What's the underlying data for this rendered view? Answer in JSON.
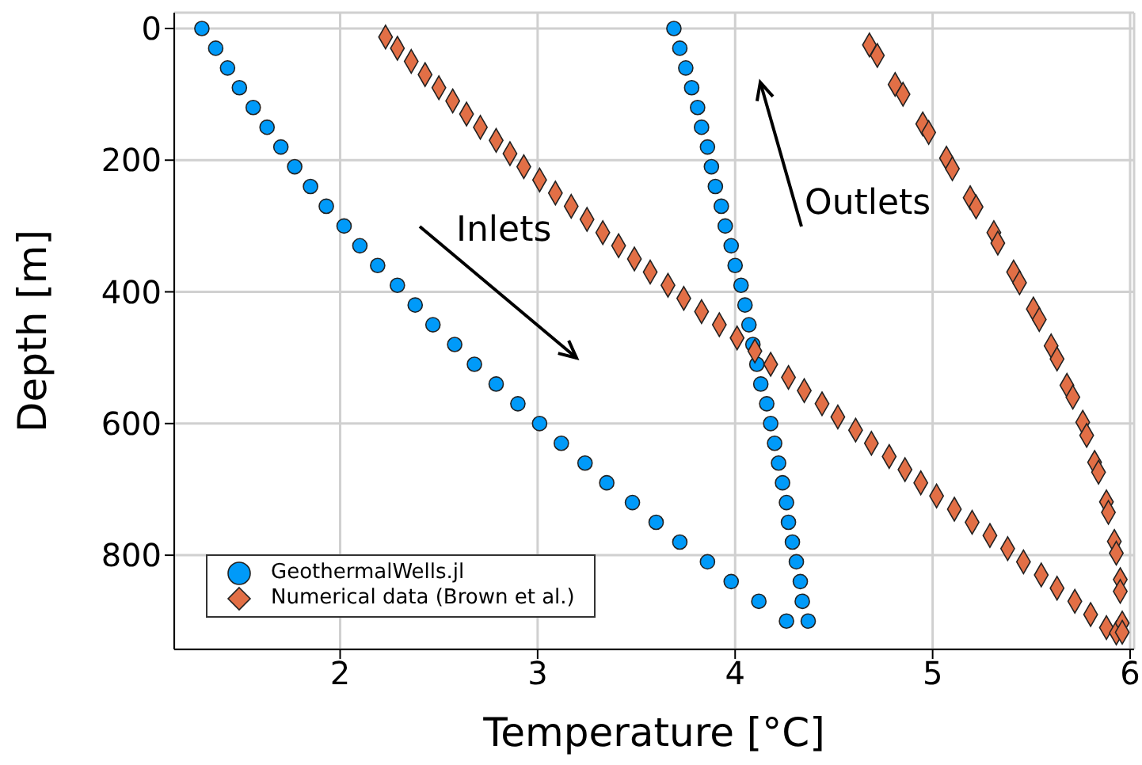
{
  "chart_data": {
    "type": "scatter",
    "xlabel": "Temperature [°C]",
    "ylabel": "Depth [m]",
    "xlim": [
      1.16,
      6.02
    ],
    "xticks": [
      2,
      3,
      4,
      5,
      6
    ],
    "ylim": [
      943,
      -24
    ],
    "yticks": [
      0,
      200,
      400,
      600,
      800
    ],
    "grid": true,
    "legend": "bottom left",
    "annotations": [
      "Inlets",
      "Outlets"
    ],
    "series": [
      {
        "name": "GeothermalWells.jl",
        "color": "#009af9",
        "marker": "circle",
        "x": [
          1.3,
          1.37,
          1.43,
          1.49,
          1.56,
          1.63,
          1.7,
          1.77,
          1.85,
          1.93,
          2.02,
          2.1,
          2.19,
          2.29,
          2.38,
          2.47,
          2.58,
          2.68,
          2.79,
          2.9,
          3.01,
          3.12,
          3.24,
          3.35,
          3.48,
          3.6,
          3.72,
          3.86,
          3.98,
          4.12,
          4.26,
          3.69,
          3.72,
          3.75,
          3.78,
          3.81,
          3.83,
          3.86,
          3.88,
          3.9,
          3.93,
          3.95,
          3.98,
          4.0,
          4.03,
          4.05,
          4.07,
          4.09,
          4.11,
          4.13,
          4.16,
          4.18,
          4.2,
          4.22,
          4.24,
          4.26,
          4.27,
          4.29,
          4.31,
          4.33,
          4.34,
          4.37
        ],
        "values": [
          0,
          30,
          60,
          90,
          120,
          150,
          180,
          210,
          240,
          270,
          300,
          330,
          360,
          390,
          420,
          450,
          480,
          510,
          540,
          570,
          600,
          630,
          660,
          690,
          720,
          750,
          780,
          810,
          840,
          870,
          900,
          0,
          30,
          60,
          90,
          120,
          150,
          180,
          210,
          240,
          270,
          300,
          330,
          360,
          390,
          420,
          450,
          480,
          510,
          540,
          570,
          600,
          630,
          660,
          690,
          720,
          750,
          780,
          810,
          840,
          870,
          900
        ]
      },
      {
        "name": "Numerical data (Brown et al.)",
        "color": "#e26f46",
        "marker": "diamond",
        "x": [
          2.23,
          2.29,
          2.36,
          2.43,
          2.5,
          2.57,
          2.64,
          2.71,
          2.79,
          2.86,
          2.93,
          3.01,
          3.09,
          3.17,
          3.25,
          3.33,
          3.41,
          3.49,
          3.57,
          3.66,
          3.74,
          3.83,
          3.92,
          4.01,
          4.1,
          4.18,
          4.27,
          4.35,
          4.44,
          4.52,
          4.61,
          4.69,
          4.78,
          4.86,
          4.94,
          5.02,
          5.11,
          5.2,
          5.29,
          5.38,
          5.46,
          5.55,
          5.63,
          5.72,
          5.8,
          5.88,
          5.93,
          4.68,
          4.72,
          4.81,
          4.85,
          4.95,
          4.98,
          5.07,
          5.1,
          5.19,
          5.22,
          5.31,
          5.33,
          5.41,
          5.44,
          5.51,
          5.54,
          5.6,
          5.63,
          5.68,
          5.71,
          5.76,
          5.78,
          5.82,
          5.84,
          5.88,
          5.89,
          5.92,
          5.93,
          5.95,
          5.95,
          5.96,
          5.96
        ],
        "values": [
          13,
          30,
          50,
          70,
          90,
          110,
          130,
          150,
          170,
          190,
          210,
          230,
          250,
          270,
          290,
          310,
          330,
          350,
          370,
          390,
          410,
          430,
          450,
          470,
          490,
          510,
          530,
          550,
          570,
          590,
          610,
          630,
          650,
          670,
          690,
          710,
          730,
          750,
          770,
          790,
          810,
          830,
          850,
          870,
          890,
          910,
          918,
          25,
          41,
          85,
          100,
          145,
          158,
          197,
          213,
          257,
          271,
          310,
          326,
          370,
          386,
          426,
          442,
          482,
          502,
          542,
          560,
          598,
          618,
          659,
          674,
          719,
          735,
          779,
          797,
          837,
          855,
          903,
          917
        ]
      }
    ]
  }
}
